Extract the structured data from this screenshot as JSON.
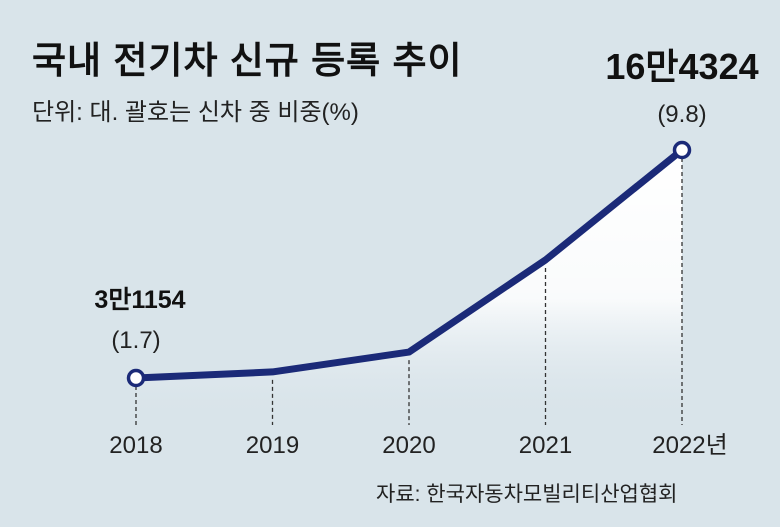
{
  "chart_data": {
    "type": "line",
    "title": "국내 전기차 신규 등록 추이",
    "subtitle": "단위: 대. 괄호는 신차 중 비중(%)",
    "source": "자료: 한국자동차모빌리티산업협회",
    "categories": [
      "2018",
      "2019",
      "2020",
      "2021",
      "2022년"
    ],
    "values": [
      31154,
      34700,
      46300,
      100100,
      164324
    ],
    "annotations": [
      {
        "index": 0,
        "value_label": "3만1154",
        "share_label": "(1.7)"
      },
      {
        "index": 4,
        "value_label": "16만4324",
        "share_label": "(9.8)"
      }
    ],
    "xlabel": "",
    "ylabel": "",
    "ylim": [
      31154,
      164324
    ],
    "grid": false,
    "colors": {
      "line": "#1b2a78",
      "background": "#d9e4ea",
      "fill": "#ffffff"
    }
  }
}
